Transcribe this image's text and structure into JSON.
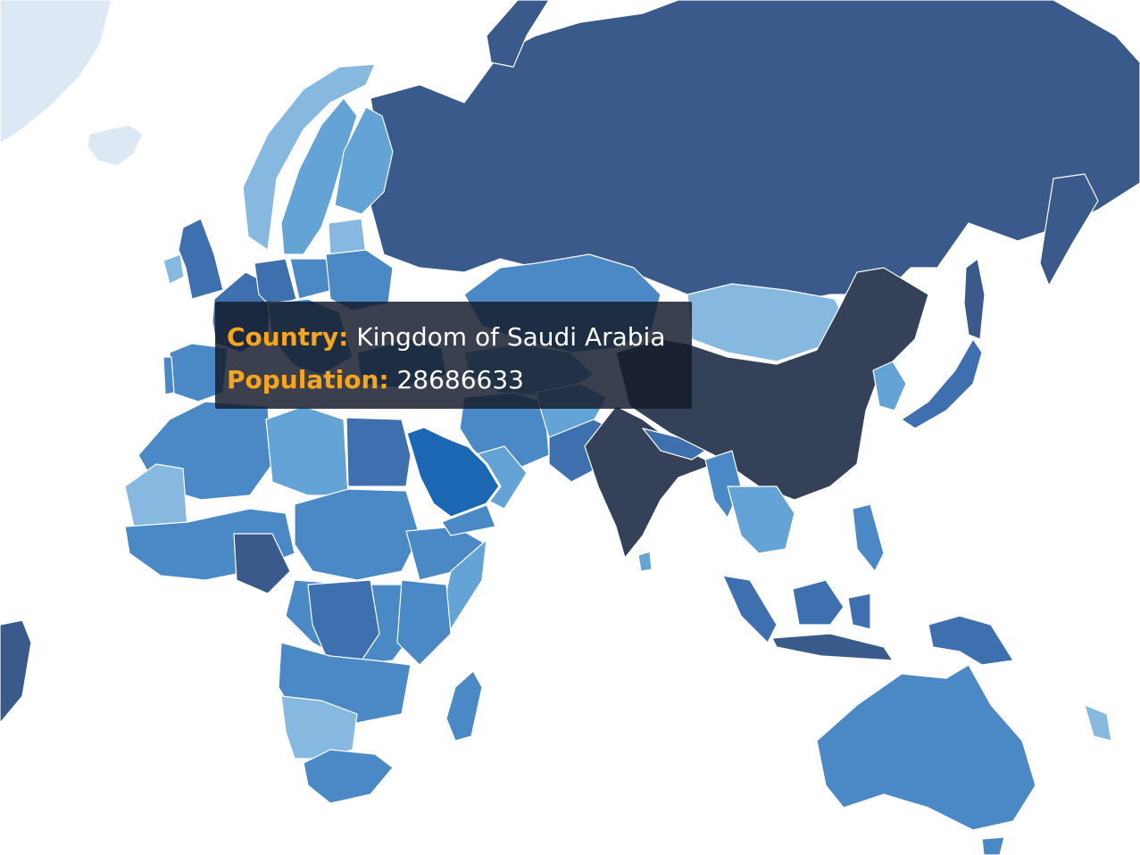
{
  "tooltip": {
    "country_label": "Country:",
    "country_value": "Kingdom of Saudi Arabia",
    "population_label": "Population:",
    "population_value": "28686633"
  },
  "colors": {
    "background": "#ffffff",
    "border": "#ffffff",
    "tooltip_key": "#f7a51a",
    "tooltip_background": "#141b2b",
    "hovered_country": "#1c67b3",
    "scale": [
      "#dce9f5",
      "#87b9e0",
      "#63a3d5",
      "#4a89c6",
      "#3e6fae",
      "#3a5a8b",
      "#344159"
    ]
  }
}
